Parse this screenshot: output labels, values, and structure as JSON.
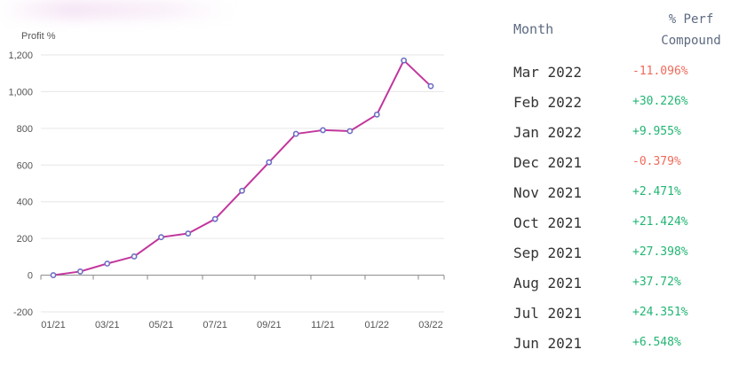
{
  "chart_data": {
    "type": "line",
    "ylabel": "Profit %",
    "ylim": [
      -200,
      1200
    ],
    "yticks": [
      "1,200",
      "1,000",
      "800",
      "600",
      "400",
      "200",
      "0",
      "-200"
    ],
    "ytick_values": [
      1200,
      1000,
      800,
      600,
      400,
      200,
      0,
      -200
    ],
    "xticks": [
      "01/21",
      "03/21",
      "05/21",
      "07/21",
      "09/21",
      "11/21",
      "01/22",
      "03/22"
    ],
    "xtick_index": [
      0,
      2,
      4,
      6,
      8,
      10,
      12,
      14
    ],
    "x": [
      "01/21",
      "02/21",
      "03/21",
      "04/21",
      "05/21",
      "06/21",
      "07/21",
      "08/21",
      "09/21",
      "10/21",
      "11/21",
      "12/21",
      "01/22",
      "02/22",
      "03/22"
    ],
    "series": [
      {
        "values": [
          0,
          20,
          63,
          102,
          207,
          227,
          306,
          460,
          615,
          770,
          790,
          785,
          875,
          1170,
          1030
        ]
      }
    ],
    "grid": true,
    "line_color": "#c2369c",
    "marker_color": "#6f6fc4"
  },
  "table": {
    "header_month": "Month",
    "header_perf_line1": "% Perf",
    "header_perf_line2": "Compound",
    "rows": [
      {
        "month": "Mar 2022",
        "perf": "-11.096%",
        "positive": false
      },
      {
        "month": "Feb 2022",
        "perf": "+30.226%",
        "positive": true
      },
      {
        "month": "Jan 2022",
        "perf": "+9.955%",
        "positive": true
      },
      {
        "month": "Dec 2021",
        "perf": "-0.379%",
        "positive": false
      },
      {
        "month": "Nov 2021",
        "perf": "+2.471%",
        "positive": true
      },
      {
        "month": "Oct 2021",
        "perf": "+21.424%",
        "positive": true
      },
      {
        "month": "Sep 2021",
        "perf": "+27.398%",
        "positive": true
      },
      {
        "month": "Aug 2021",
        "perf": "+37.72%",
        "positive": true
      },
      {
        "month": "Jul 2021",
        "perf": "+24.351%",
        "positive": true
      },
      {
        "month": "Jun 2021",
        "perf": "+6.548%",
        "positive": true
      }
    ],
    "positive_color": "#22b573",
    "negative_color": "#ef6a5a"
  }
}
